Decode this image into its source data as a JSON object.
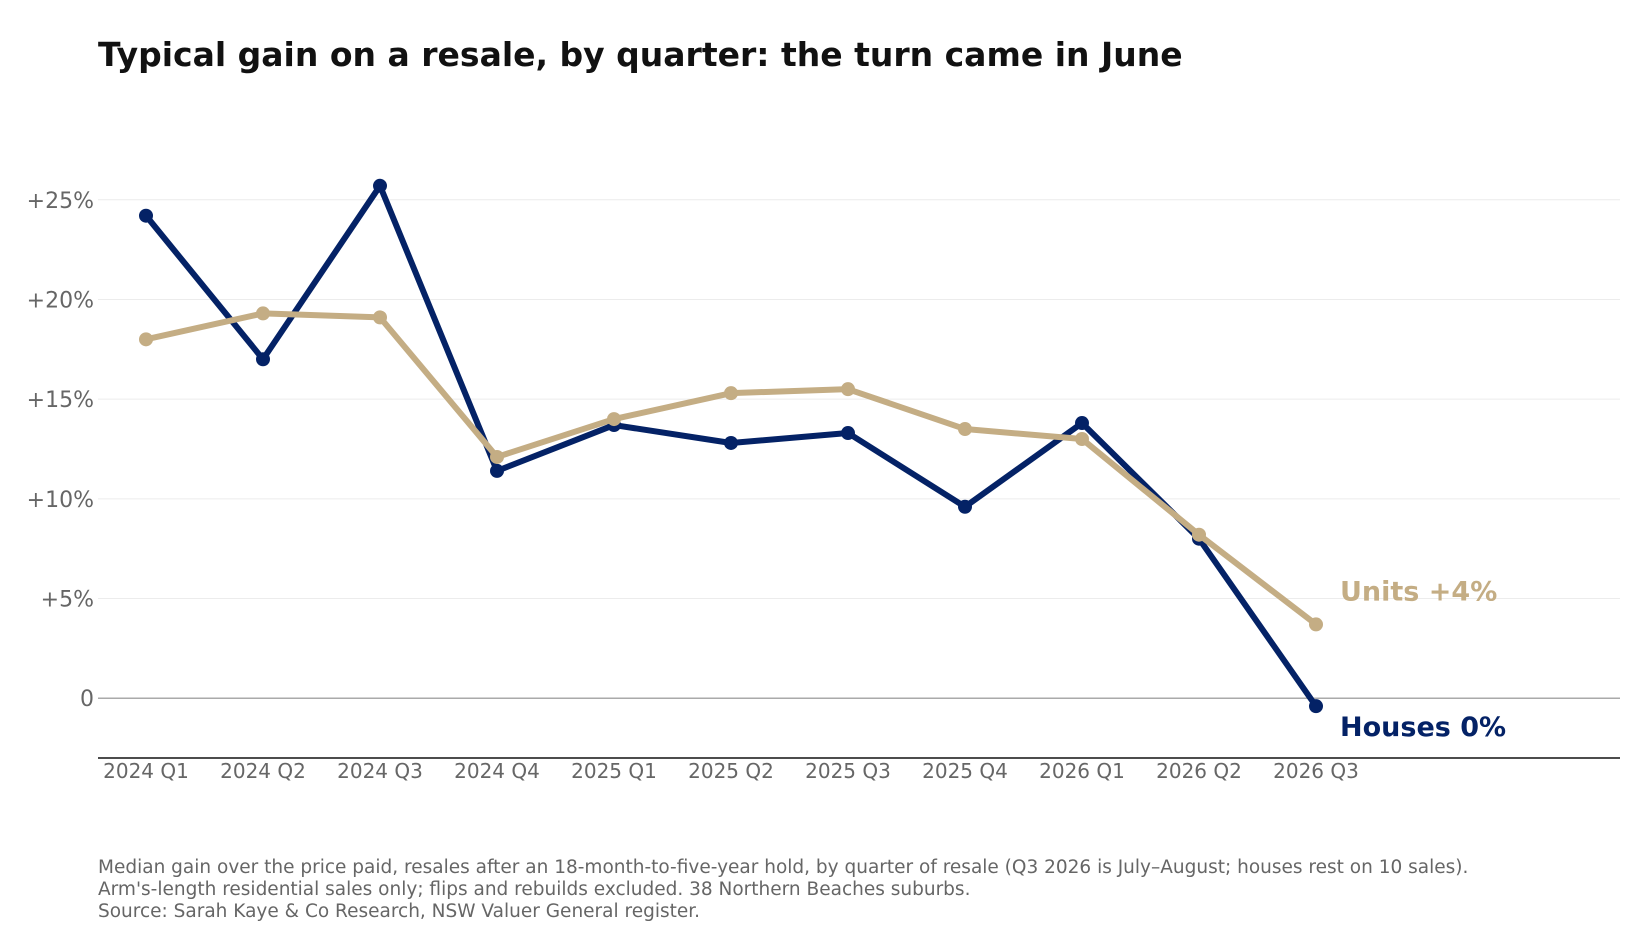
{
  "chart_data": {
    "type": "line",
    "title": "Typical gain on a resale, by quarter: the turn came in June",
    "xlabel": "",
    "ylabel": "",
    "categories": [
      "2024 Q1",
      "2024 Q2",
      "2024 Q3",
      "2024 Q4",
      "2025 Q1",
      "2025 Q2",
      "2025 Q3",
      "2025 Q4",
      "2026 Q1",
      "2026 Q2",
      "2026 Q3"
    ],
    "ylim": [
      -3,
      29
    ],
    "yticks": [
      0,
      5,
      10,
      15,
      20,
      25
    ],
    "ytick_labels": [
      "0",
      "+5%",
      "+10%",
      "+15%",
      "+20%",
      "+25%"
    ],
    "grid": "horizontal",
    "legend": "none",
    "series": [
      {
        "name": "Houses",
        "color": "#042266",
        "values": [
          24.2,
          17.0,
          25.7,
          11.4,
          13.7,
          12.8,
          13.3,
          9.6,
          13.8,
          8.0,
          -0.4
        ],
        "end_label": "Houses  0%"
      },
      {
        "name": "Units",
        "color": "#c4ad84",
        "values": [
          18.0,
          19.3,
          19.1,
          12.1,
          14.0,
          15.3,
          15.5,
          13.5,
          13.0,
          8.2,
          3.7
        ],
        "end_label": "Units  +4%"
      }
    ]
  },
  "footnote": {
    "line1": "Median gain over the price paid, resales after an 18-month-to-five-year hold, by quarter of resale (Q3 2026 is July–August; houses rest on 10 sales).",
    "line2": "Arm's-length residential sales only; flips and rebuilds excluded. 38 Northern Beaches suburbs.",
    "line3": "Source: Sarah Kaye & Co Research, NSW Valuer General register."
  }
}
